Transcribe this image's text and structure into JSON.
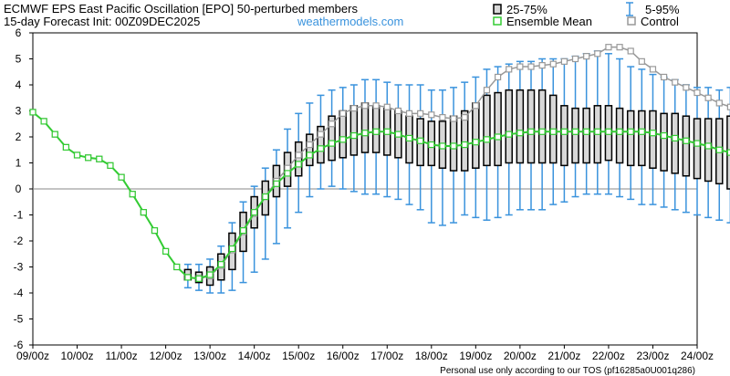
{
  "header": {
    "title_line1": "ECMWF EPS East Pacific Oscillation [EPO]  50-perturbed members",
    "title_line2": "15-day Forecast Init: 00Z09DEC2025",
    "site": "weathermodels.com"
  },
  "legend": {
    "box_label": "25-75%",
    "whisker_label": "5-95%",
    "mean_label": "Ensemble Mean",
    "control_label": "Control"
  },
  "footer": "Personal use only according to our TOS (pf16285a0U001q286)",
  "colors": {
    "box_fill": "#d8d8d8",
    "whisker": "#3a93dd",
    "mean": "#33cc33",
    "control": "#999999",
    "zero_line": "#888888"
  },
  "chart_data": {
    "type": "box",
    "x_tick_labels": [
      "09/00z",
      "10/00z",
      "11/00z",
      "12/00z",
      "13/00z",
      "14/00z",
      "15/00z",
      "16/00z",
      "17/00z",
      "18/00z",
      "19/00z",
      "20/00z",
      "21/00z",
      "22/00z",
      "23/00z",
      "24/00z"
    ],
    "y_tick_labels": [
      "6",
      "5",
      "4",
      "3",
      "2",
      "1",
      "0",
      "-1",
      "-2",
      "-3",
      "-4",
      "-5",
      "-6"
    ],
    "ylim": [
      -6,
      6
    ],
    "x_range_days": [
      0,
      15
    ],
    "step_hours": 6,
    "grid": false,
    "legend_position": "top-right",
    "series": [
      {
        "name": "Ensemble Mean",
        "values": [
          2.95,
          2.6,
          2.1,
          1.6,
          1.3,
          1.2,
          1.15,
          0.9,
          0.45,
          -0.2,
          -0.9,
          -1.6,
          -2.4,
          -3.0,
          -3.4,
          -3.45,
          -3.3,
          -2.9,
          -2.3,
          -1.6,
          -0.9,
          -0.3,
          0.2,
          0.6,
          0.95,
          1.3,
          1.55,
          1.75,
          1.9,
          2.05,
          2.15,
          2.2,
          2.2,
          2.1,
          1.95,
          1.85,
          1.7,
          1.65,
          1.65,
          1.7,
          1.8,
          1.9,
          2.0,
          2.1,
          2.15,
          2.2,
          2.2,
          2.2,
          2.2,
          2.2,
          2.2,
          2.2,
          2.2,
          2.2,
          2.2,
          2.2,
          2.15,
          2.05,
          1.95,
          1.85,
          1.75,
          1.65,
          1.5,
          1.4,
          1.35
        ]
      },
      {
        "name": "Control",
        "values": [
          2.95,
          2.6,
          2.1,
          1.6,
          1.3,
          1.2,
          1.15,
          0.9,
          0.45,
          -0.2,
          -0.9,
          -1.6,
          -2.4,
          -3.0,
          -3.4,
          -3.45,
          -3.35,
          -2.95,
          -2.35,
          -1.65,
          -0.95,
          -0.3,
          0.3,
          0.8,
          1.3,
          1.7,
          2.1,
          2.5,
          2.9,
          3.1,
          3.2,
          3.2,
          3.15,
          3.0,
          2.9,
          2.9,
          2.85,
          2.75,
          2.7,
          2.75,
          3.2,
          3.8,
          4.3,
          4.6,
          4.7,
          4.7,
          4.75,
          4.8,
          4.9,
          5.0,
          5.1,
          5.2,
          5.45,
          5.45,
          5.3,
          4.9,
          4.6,
          4.3,
          4.1,
          3.9,
          3.7,
          3.5,
          3.3,
          3.15,
          3.1
        ]
      }
    ],
    "box_25_75": {
      "q25": [
        null,
        null,
        null,
        null,
        null,
        null,
        null,
        null,
        null,
        null,
        null,
        null,
        null,
        null,
        -3.5,
        -3.6,
        -3.7,
        -3.5,
        -3.1,
        -2.4,
        -1.5,
        -1.0,
        -0.3,
        0.1,
        0.5,
        0.9,
        1.0,
        1.1,
        1.2,
        1.3,
        1.4,
        1.4,
        1.3,
        1.2,
        1.0,
        0.9,
        0.9,
        0.8,
        0.7,
        0.7,
        0.8,
        0.9,
        0.9,
        1.0,
        1.0,
        1.0,
        1.0,
        1.0,
        0.9,
        1.0,
        1.0,
        1.0,
        1.1,
        1.0,
        0.9,
        0.9,
        0.8,
        0.7,
        0.6,
        0.5,
        0.4,
        0.3,
        0.2,
        0.0,
        0.0
      ],
      "q75": [
        null,
        null,
        null,
        null,
        null,
        null,
        null,
        null,
        null,
        null,
        null,
        null,
        null,
        null,
        -3.1,
        -3.2,
        -3.0,
        -2.5,
        -1.7,
        -0.9,
        -0.3,
        0.3,
        0.9,
        1.4,
        1.8,
        2.1,
        2.4,
        2.8,
        3.0,
        3.2,
        3.3,
        3.2,
        3.1,
        3.0,
        2.8,
        2.7,
        2.6,
        2.6,
        2.8,
        3.0,
        3.3,
        3.6,
        3.7,
        3.8,
        3.8,
        3.8,
        3.8,
        3.6,
        3.2,
        3.1,
        3.1,
        3.2,
        3.2,
        3.1,
        3.0,
        3.0,
        3.0,
        2.9,
        2.9,
        2.8,
        2.7,
        2.7,
        2.7,
        2.8,
        2.8
      ]
    },
    "whisker_5_95": {
      "p05": [
        null,
        null,
        null,
        null,
        null,
        null,
        null,
        null,
        null,
        null,
        null,
        null,
        null,
        null,
        -3.8,
        -3.9,
        -4.0,
        -4.0,
        -3.9,
        -3.6,
        -3.2,
        -2.7,
        -2.1,
        -1.5,
        -0.9,
        -0.3,
        0.0,
        0.1,
        0.0,
        -0.1,
        -0.2,
        -0.2,
        -0.3,
        -0.4,
        -0.6,
        -0.8,
        -1.3,
        -1.4,
        -1.3,
        -1.0,
        -1.1,
        -1.2,
        -1.1,
        -1.0,
        -0.8,
        -0.8,
        -0.8,
        -0.6,
        -0.5,
        -0.3,
        -0.2,
        -0.2,
        -0.2,
        -0.3,
        -0.4,
        -0.6,
        -0.6,
        -0.7,
        -0.8,
        -0.9,
        -1.0,
        -1.1,
        -1.2,
        -1.3,
        -1.4
      ],
      "p95": [
        null,
        null,
        null,
        null,
        null,
        null,
        null,
        null,
        null,
        null,
        null,
        null,
        null,
        null,
        -2.9,
        -2.9,
        -2.7,
        -2.2,
        -1.3,
        -0.5,
        0.1,
        0.8,
        1.5,
        2.3,
        2.9,
        3.3,
        3.6,
        3.8,
        3.9,
        4.0,
        4.2,
        4.2,
        4.1,
        4.0,
        4.0,
        4.0,
        3.8,
        3.8,
        3.9,
        4.1,
        4.3,
        4.6,
        4.7,
        4.8,
        4.9,
        4.9,
        5.0,
        5.0,
        5.0,
        5.1,
        5.2,
        5.3,
        5.2,
        5.0,
        4.7,
        4.6,
        4.4,
        4.3,
        4.2,
        4.0,
        3.9,
        3.9,
        3.8,
        3.9,
        3.9
      ]
    }
  }
}
